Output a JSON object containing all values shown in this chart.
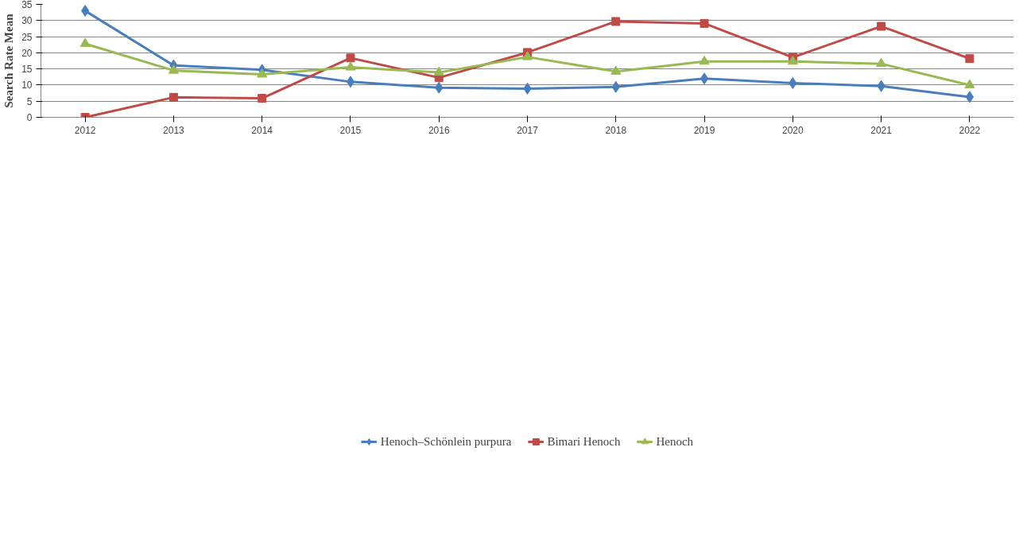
{
  "chart_data": {
    "type": "line",
    "ylabel": "Search Rate Mean",
    "categories": [
      "2012",
      "2013",
      "2014",
      "2015",
      "2016",
      "2017",
      "2018",
      "2019",
      "2020",
      "2021",
      "2022"
    ],
    "series": [
      {
        "name": "Henoch–Schönlein purpura",
        "color": "#4a7ebb",
        "marker": "diamond",
        "values": [
          33.0,
          16.1,
          14.7,
          11.0,
          9.2,
          8.9,
          9.4,
          12.0,
          10.6,
          9.7,
          6.3
        ]
      },
      {
        "name": "Bimari Henoch",
        "color": "#be4b48",
        "marker": "square",
        "values": [
          0,
          6.2,
          5.9,
          18.4,
          12.3,
          20.1,
          29.7,
          29.1,
          18.6,
          28.2,
          18.2
        ]
      },
      {
        "name": "Henoch",
        "color": "#98b954",
        "marker": "triangle",
        "values": [
          22.8,
          14.5,
          13.3,
          15.5,
          13.9,
          18.7,
          14.2,
          17.3,
          17.3,
          16.6,
          10.0
        ]
      }
    ],
    "ylim": [
      0,
      35
    ],
    "yticks": [
      0,
      5,
      10,
      15,
      20,
      25,
      30,
      35
    ],
    "grid": "y",
    "legend": "bottom",
    "line_style": "solid"
  }
}
